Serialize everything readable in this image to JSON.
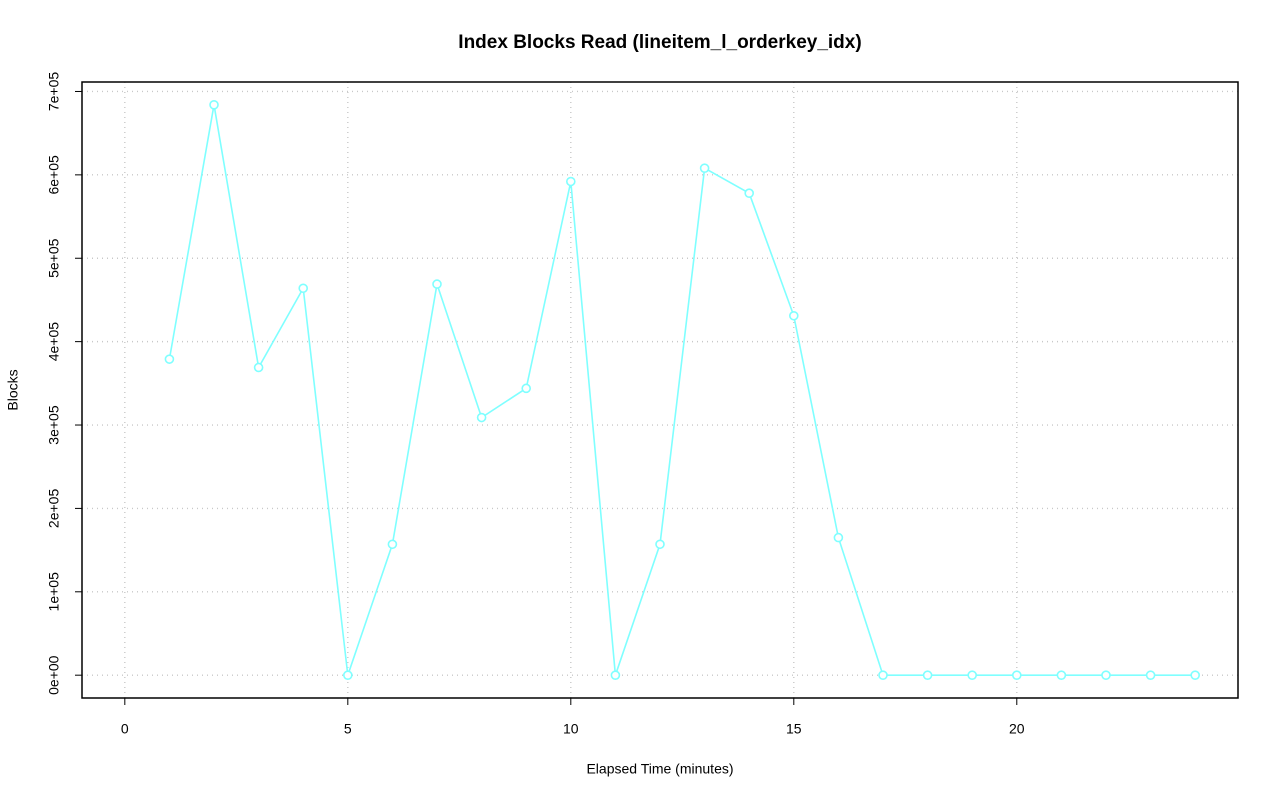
{
  "chart_data": {
    "type": "line",
    "title": "Index Blocks Read (lineitem_l_orderkey_idx)",
    "x_label": "Elapsed Time (minutes)",
    "y_label": "Blocks",
    "x": [
      1,
      2,
      3,
      4,
      5,
      6,
      7,
      8,
      9,
      10,
      11,
      12,
      13,
      14,
      15,
      16,
      17,
      18,
      19,
      20,
      21,
      22,
      23,
      24
    ],
    "values": [
      379000,
      684000,
      369000,
      464000,
      0,
      157000,
      469000,
      309000,
      344000,
      592000,
      0,
      157000,
      608000,
      578000,
      431000,
      165000,
      0,
      0,
      0,
      0,
      0,
      0,
      0,
      0
    ],
    "color": "#7fffff",
    "xlim": [
      -0.96,
      24.96
    ],
    "xticks": [
      0,
      5,
      10,
      15,
      20
    ],
    "ylim": [
      -27360,
      711360
    ],
    "yticks": [
      {
        "value": 0,
        "label": "0e+00"
      },
      {
        "value": 100000,
        "label": "1e+05"
      },
      {
        "value": 200000,
        "label": "2e+05"
      },
      {
        "value": 300000,
        "label": "3e+05"
      },
      {
        "value": 400000,
        "label": "4e+05"
      },
      {
        "value": 500000,
        "label": "5e+05"
      },
      {
        "value": 600000,
        "label": "6e+05"
      },
      {
        "value": 700000,
        "label": "7e+05"
      }
    ],
    "grid": true
  }
}
